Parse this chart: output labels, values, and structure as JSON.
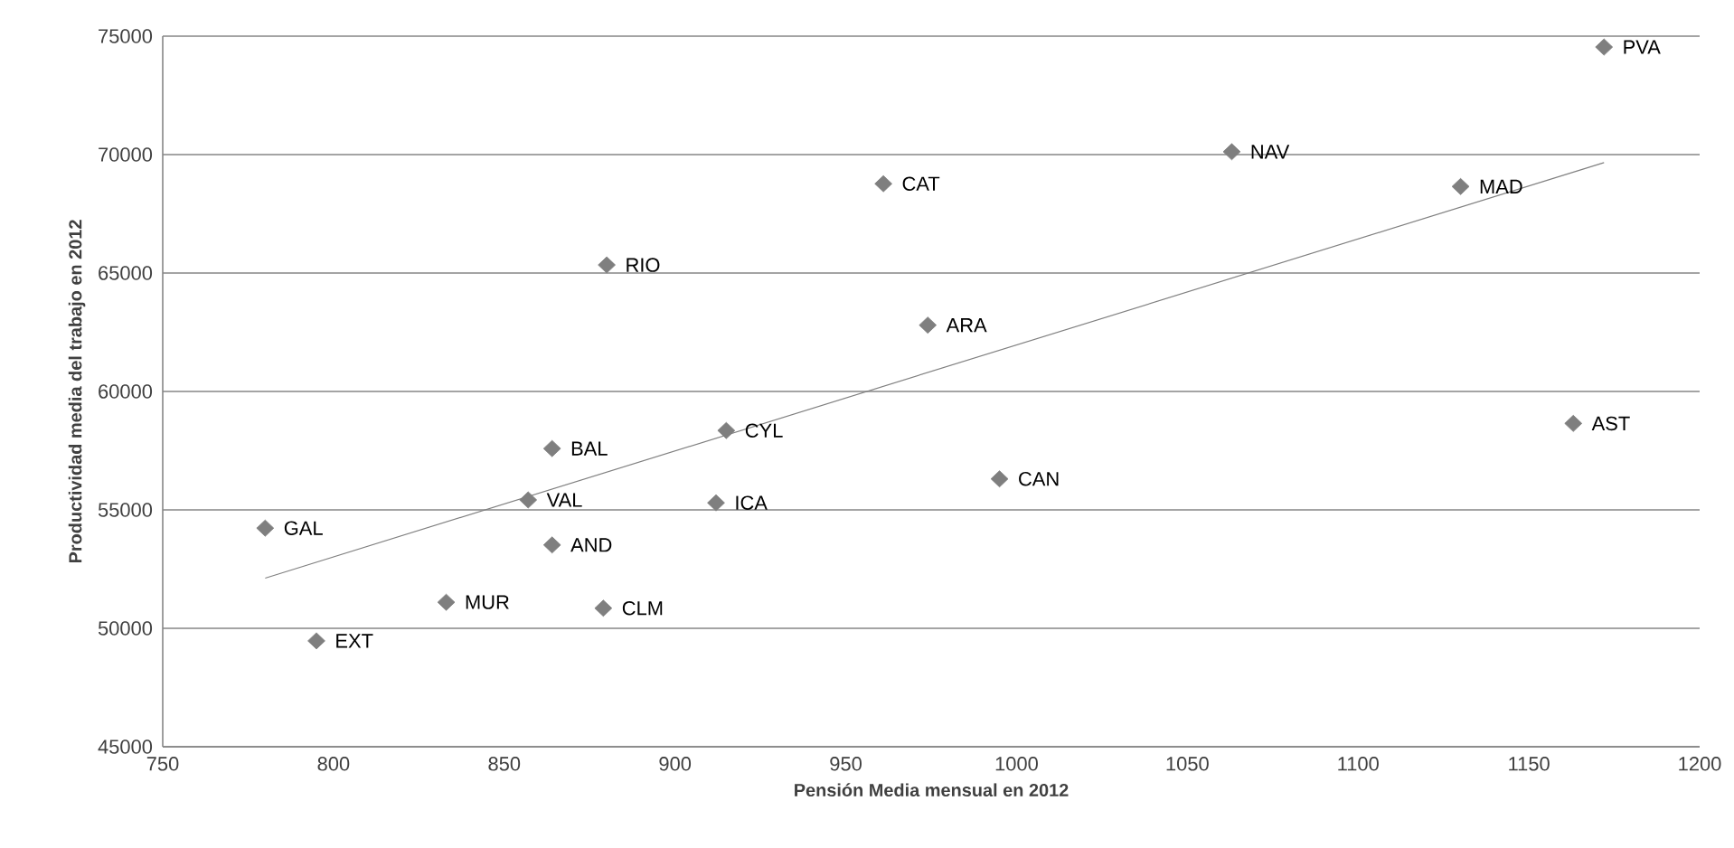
{
  "chart_data": {
    "type": "scatter",
    "xlabel": "Pensión Media mensual en 2012",
    "ylabel": "Productividad media del trabajo en 2012",
    "xlim": [
      750,
      1200
    ],
    "xticks": [
      750,
      800,
      850,
      900,
      950,
      1000,
      1050,
      1100,
      1150,
      1200
    ],
    "ylim": [
      45000,
      75000
    ],
    "yticks": [
      45000,
      50000,
      55000,
      60000,
      65000,
      70000,
      75000
    ],
    "grid": "y",
    "marker": "diamond",
    "series": [
      {
        "color": "#7f7f7f",
        "x": [
          780,
          795,
          833,
          857,
          864,
          864,
          879,
          880,
          912,
          915,
          961,
          974,
          995,
          1063,
          1130,
          1163,
          1172
        ],
        "values": [
          54230,
          49470,
          51100,
          55420,
          57590,
          53520,
          50850,
          65340,
          55300,
          58350,
          68770,
          62800,
          56310,
          70120,
          68650,
          58650,
          74540
        ]
      },
      {
        "type": "line",
        "color": "#808080",
        "marker": "none",
        "x": [
          780,
          1172
        ],
        "values": [
          52120,
          69660
        ]
      }
    ],
    "annotations": [
      {
        "text": "GAL",
        "x": 780,
        "y": 54230
      },
      {
        "text": "EXT",
        "x": 795,
        "y": 49470
      },
      {
        "text": "MUR",
        "x": 833,
        "y": 51100
      },
      {
        "text": "VAL",
        "x": 857,
        "y": 55420
      },
      {
        "text": "BAL",
        "x": 864,
        "y": 57590
      },
      {
        "text": "AND",
        "x": 864,
        "y": 53520
      },
      {
        "text": "CLM",
        "x": 879,
        "y": 50850
      },
      {
        "text": "RIO",
        "x": 880,
        "y": 65340
      },
      {
        "text": "ICA",
        "x": 912,
        "y": 55300
      },
      {
        "text": "CYL",
        "x": 915,
        "y": 58350
      },
      {
        "text": "CAT",
        "x": 961,
        "y": 68770
      },
      {
        "text": "ARA",
        "x": 974,
        "y": 62800
      },
      {
        "text": "CAN",
        "x": 995,
        "y": 56310
      },
      {
        "text": "NAV",
        "x": 1063,
        "y": 70120
      },
      {
        "text": "MAD",
        "x": 1130,
        "y": 68650
      },
      {
        "text": "AST",
        "x": 1163,
        "y": 58650
      },
      {
        "text": "PVA",
        "x": 1172,
        "y": 74540
      }
    ]
  }
}
